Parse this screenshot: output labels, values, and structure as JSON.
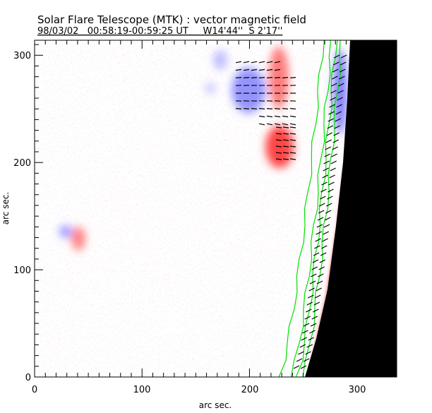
{
  "chart_data": {
    "type": "heatmap",
    "title": "Solar Flare Telescope (MTK) : vector magnetic field",
    "subtitle": "98/03/02   00:58:19-00:59:25 UT     W14'44''  S 2'17''",
    "xlabel": "arc sec.",
    "ylabel": "arc sec.",
    "xlim": [
      0,
      337
    ],
    "ylim": [
      0,
      314
    ],
    "xticks": [
      "0",
      "100",
      "200",
      "300"
    ],
    "xtick_values": [
      0,
      100,
      200,
      300
    ],
    "yticks": [
      "0",
      "100",
      "200",
      "300"
    ],
    "ytick_values": [
      0,
      100,
      200,
      300
    ],
    "colors": {
      "positive": "#ff4040",
      "negative": "#6060ff",
      "contour": "#00e000",
      "limb": "#000000"
    }
  }
}
